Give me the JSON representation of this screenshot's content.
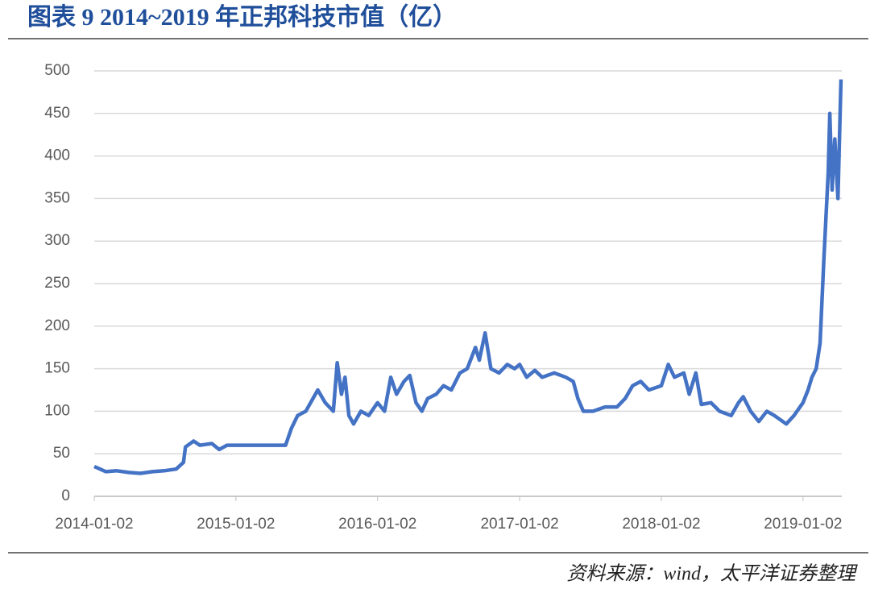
{
  "chart_data": {
    "type": "line",
    "title": "图表 9 2014~2019 年正邦科技市值（亿）",
    "source": "资料来源：wind，太平洋证券整理",
    "x": [
      "2014-01-02",
      "2014-02-01",
      "2014-03-01",
      "2014-04-01",
      "2014-05-01",
      "2014-06-01",
      "2014-07-01",
      "2014-08-01",
      "2014-08-20",
      "2014-08-25",
      "2014-09-15",
      "2014-10-01",
      "2014-11-01",
      "2014-11-20",
      "2014-12-10",
      "2015-01-02",
      "2015-03-01",
      "2015-05-10",
      "2015-05-25",
      "2015-06-10",
      "2015-07-01",
      "2015-08-01",
      "2015-08-20",
      "2015-09-10",
      "2015-09-20",
      "2015-10-01",
      "2015-10-10",
      "2015-10-20",
      "2015-11-01",
      "2015-11-20",
      "2015-12-10",
      "2016-01-02",
      "2016-01-20",
      "2016-02-05",
      "2016-02-20",
      "2016-03-10",
      "2016-03-25",
      "2016-04-10",
      "2016-04-25",
      "2016-05-10",
      "2016-06-01",
      "2016-06-20",
      "2016-07-10",
      "2016-08-01",
      "2016-08-20",
      "2016-09-10",
      "2016-09-20",
      "2016-10-05",
      "2016-10-20",
      "2016-11-10",
      "2016-12-01",
      "2016-12-20",
      "2017-01-02",
      "2017-01-20",
      "2017-02-10",
      "2017-03-01",
      "2017-04-01",
      "2017-05-01",
      "2017-05-20",
      "2017-06-01",
      "2017-06-15",
      "2017-07-10",
      "2017-08-10",
      "2017-09-10",
      "2017-10-01",
      "2017-10-20",
      "2017-11-10",
      "2017-12-01",
      "2018-01-02",
      "2018-01-20",
      "2018-02-05",
      "2018-03-01",
      "2018-03-15",
      "2018-04-01",
      "2018-04-15",
      "2018-05-10",
      "2018-06-01",
      "2018-07-01",
      "2018-07-20",
      "2018-08-01",
      "2018-08-20",
      "2018-09-10",
      "2018-10-01",
      "2018-10-20",
      "2018-11-20",
      "2018-12-10",
      "2019-01-02",
      "2019-01-15",
      "2019-01-25",
      "2019-02-05",
      "2019-02-15",
      "2019-02-25",
      "2019-03-08",
      "2019-03-12",
      "2019-03-18",
      "2019-03-25",
      "2019-04-02",
      "2019-04-10"
    ],
    "series": [
      {
        "name": "市值",
        "color": "#4472c4",
        "values": [
          35,
          29,
          30,
          28,
          27,
          29,
          30,
          32,
          40,
          58,
          65,
          60,
          62,
          55,
          60,
          60,
          60,
          60,
          80,
          95,
          100,
          125,
          110,
          100,
          157,
          120,
          140,
          95,
          85,
          100,
          95,
          110,
          100,
          140,
          120,
          135,
          142,
          110,
          100,
          115,
          120,
          130,
          125,
          145,
          150,
          175,
          160,
          192,
          150,
          145,
          155,
          150,
          155,
          140,
          148,
          140,
          145,
          140,
          135,
          115,
          100,
          100,
          105,
          105,
          115,
          130,
          135,
          125,
          130,
          155,
          140,
          145,
          120,
          145,
          108,
          110,
          100,
          95,
          110,
          117,
          100,
          88,
          100,
          95,
          85,
          95,
          110,
          125,
          140,
          150,
          180,
          280,
          380,
          450,
          360,
          420,
          350,
          490
        ]
      }
    ],
    "xlim": [
      "2014-01-02",
      "2019-04-12"
    ],
    "xticks": [
      "2014-01-02",
      "2015-01-02",
      "2016-01-02",
      "2017-01-02",
      "2018-01-02",
      "2019-01-02"
    ],
    "ylim": [
      0,
      500
    ],
    "yticks": [
      0,
      50,
      100,
      150,
      200,
      250,
      300,
      350,
      400,
      450,
      500
    ],
    "grid": true
  }
}
